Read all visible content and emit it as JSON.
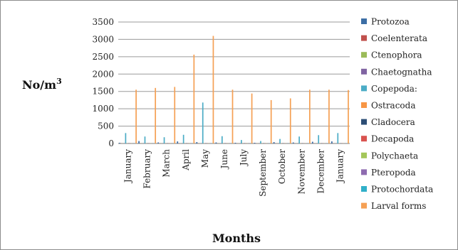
{
  "chart_data": {
    "type": "bar",
    "ylabel": "No/m",
    "ylabel_sup": "3",
    "xlabel": "Months",
    "ylim": [
      0,
      3500
    ],
    "yticks": [
      "0",
      "500",
      "1000",
      "1500",
      "2000",
      "2500",
      "3000",
      "3500"
    ],
    "categories": [
      "January",
      "February",
      "March",
      "April",
      "May",
      "June",
      "July",
      "September",
      "October",
      "November",
      "December",
      "January"
    ],
    "legend_position": "right",
    "grid": true,
    "series": [
      {
        "name": "Protozoa",
        "color": "#3c6ea5",
        "values": [
          20,
          70,
          30,
          60,
          40,
          30,
          20,
          20,
          40,
          30,
          50,
          60
        ]
      },
      {
        "name": "Coelenterata",
        "color": "#c0504d",
        "values": [
          5,
          5,
          5,
          5,
          5,
          5,
          5,
          5,
          5,
          5,
          5,
          5
        ]
      },
      {
        "name": "Ctenophora",
        "color": "#9bbb59",
        "values": [
          5,
          5,
          5,
          5,
          5,
          5,
          5,
          5,
          5,
          5,
          5,
          5
        ]
      },
      {
        "name": "Chaetognatha",
        "color": "#8064a2",
        "values": [
          5,
          5,
          5,
          5,
          5,
          5,
          5,
          5,
          5,
          5,
          5,
          5
        ]
      },
      {
        "name": "Copepoda:",
        "color": "#4bacc6",
        "values": [
          300,
          200,
          180,
          250,
          1180,
          210,
          100,
          70,
          130,
          200,
          240,
          300
        ]
      },
      {
        "name": "Ostracoda",
        "color": "#f79646",
        "values": [
          5,
          5,
          5,
          5,
          5,
          5,
          5,
          5,
          5,
          5,
          5,
          5
        ]
      },
      {
        "name": "Cladocera",
        "color": "#2c4d75",
        "values": [
          5,
          5,
          5,
          5,
          5,
          5,
          5,
          5,
          5,
          5,
          5,
          5
        ]
      },
      {
        "name": "Decapoda",
        "color": "#d9534f",
        "values": [
          5,
          5,
          5,
          5,
          5,
          5,
          5,
          5,
          5,
          5,
          5,
          5
        ]
      },
      {
        "name": "Polychaeta",
        "color": "#a4c65a",
        "values": [
          5,
          5,
          5,
          5,
          5,
          5,
          5,
          5,
          5,
          5,
          5,
          5
        ]
      },
      {
        "name": "Pteropoda",
        "color": "#8e6bb0",
        "values": [
          5,
          5,
          5,
          5,
          5,
          5,
          5,
          5,
          5,
          5,
          5,
          5
        ]
      },
      {
        "name": "Protochordata",
        "color": "#31b0c9",
        "values": [
          5,
          5,
          5,
          5,
          5,
          5,
          5,
          5,
          5,
          5,
          5,
          5
        ]
      },
      {
        "name": "Larval forms",
        "color": "#f5a054",
        "values": [
          1550,
          1600,
          1630,
          2560,
          3100,
          1550,
          1440,
          1250,
          1300,
          1550,
          1550,
          1540
        ]
      }
    ]
  }
}
